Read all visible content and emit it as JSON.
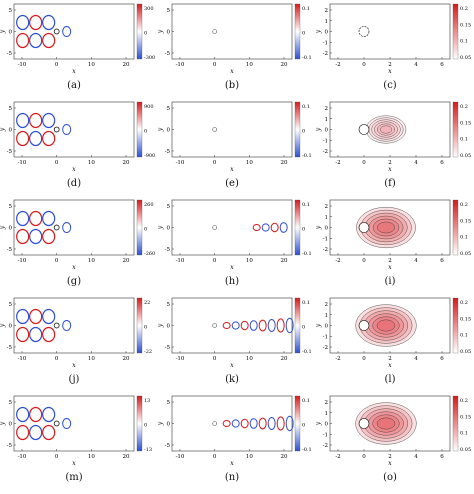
{
  "figure": {
    "rows": [
      {
        "a": {
          "caption": "(a)",
          "cbar_ticks": [
            "300",
            "0",
            "-300"
          ]
        },
        "b": {
          "caption": "(b)",
          "cbar_ticks": [
            "0.1",
            "0",
            "-0.1"
          ]
        },
        "c": {
          "caption": "(c)",
          "cbar_ticks": [
            "0.2",
            "0.15",
            "0.1",
            "0.05"
          ]
        }
      },
      {
        "a": {
          "caption": "(d)",
          "cbar_ticks": [
            "900",
            "0",
            "-900"
          ]
        },
        "b": {
          "caption": "(e)",
          "cbar_ticks": [
            "0.1",
            "0",
            "-0.1"
          ]
        },
        "c": {
          "caption": "(f)",
          "cbar_ticks": [
            "0.2",
            "0.15",
            "0.1",
            "0.05"
          ]
        }
      },
      {
        "a": {
          "caption": "(g)",
          "cbar_ticks": [
            "260",
            "0",
            "-260"
          ]
        },
        "b": {
          "caption": "(h)",
          "cbar_ticks": [
            "0.1",
            "0",
            "-0.1"
          ]
        },
        "c": {
          "caption": "(i)",
          "cbar_ticks": [
            "0.2",
            "0.15",
            "0.1",
            "0.05"
          ]
        }
      },
      {
        "a": {
          "caption": "(j)",
          "cbar_ticks": [
            "22",
            "0",
            "-22"
          ]
        },
        "b": {
          "caption": "(k)",
          "cbar_ticks": [
            "0.1",
            "0",
            "-0.1"
          ]
        },
        "c": {
          "caption": "(l)",
          "cbar_ticks": [
            "0.2",
            "0.15",
            "0.1",
            "0.05"
          ]
        }
      },
      {
        "a": {
          "caption": "(m)",
          "cbar_ticks": [
            "13",
            "0",
            "-13"
          ]
        },
        "b": {
          "caption": "(n)",
          "cbar_ticks": [
            "0.1",
            "0",
            "-0.1"
          ]
        },
        "c": {
          "caption": "(o)",
          "cbar_ticks": [
            "0.2",
            "0.15",
            "0.1",
            "0.05"
          ]
        }
      }
    ],
    "wide_axes": {
      "xticks": [
        "-10",
        "0",
        "10",
        "20"
      ],
      "yticks": [
        "5",
        "0",
        "-5"
      ],
      "xlabel": "x",
      "ylabel": "y"
    },
    "zoom_axes": {
      "xticks": [
        "-2",
        "0",
        "2",
        "4",
        "6"
      ],
      "yticks": [
        "2",
        "1",
        "0",
        "-1",
        "-2"
      ],
      "xlabel": "x",
      "ylabel": "y"
    },
    "colors": {
      "positive": "#d7191c",
      "negative": "#2c4fd1",
      "mid": "#ffffff",
      "outline": "#000000"
    },
    "patterns": {
      "a_lobes": [
        3,
        3,
        3,
        3,
        3
      ],
      "b_wake_lobes": [
        0,
        0,
        4,
        8,
        8
      ],
      "c_intensity": [
        0.0,
        0.25,
        0.85,
        0.9,
        0.9
      ]
    }
  }
}
